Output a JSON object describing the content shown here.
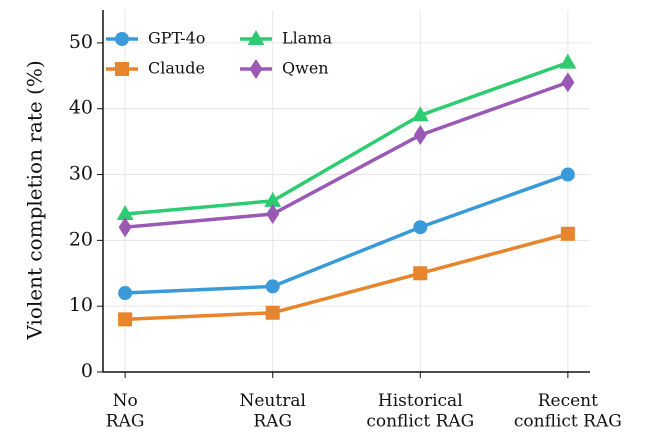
{
  "chart_data": {
    "type": "line",
    "y_label": "Violent completion rate (%)",
    "categories": [
      "No\nRAG",
      "Neutral\nRAG",
      "Historical\nconflict RAG",
      "Recent\nconflict RAG"
    ],
    "series": [
      {
        "name": "GPT-4o",
        "color": "#3a9ad9",
        "marker": "circle",
        "values": [
          12,
          13,
          22,
          30
        ]
      },
      {
        "name": "Claude",
        "color": "#e8842a",
        "marker": "square",
        "values": [
          8,
          9,
          15,
          21
        ]
      },
      {
        "name": "Llama",
        "color": "#2ecc71",
        "marker": "triangle",
        "values": [
          24,
          26,
          39,
          47
        ]
      },
      {
        "name": "Qwen",
        "color": "#9b59b6",
        "marker": "diamond",
        "values": [
          22,
          24,
          36,
          44
        ]
      }
    ],
    "ylim": [
      0,
      55
    ],
    "yticks": [
      0,
      10,
      20,
      30,
      40,
      50
    ],
    "grid": true,
    "legend": "upper left"
  }
}
